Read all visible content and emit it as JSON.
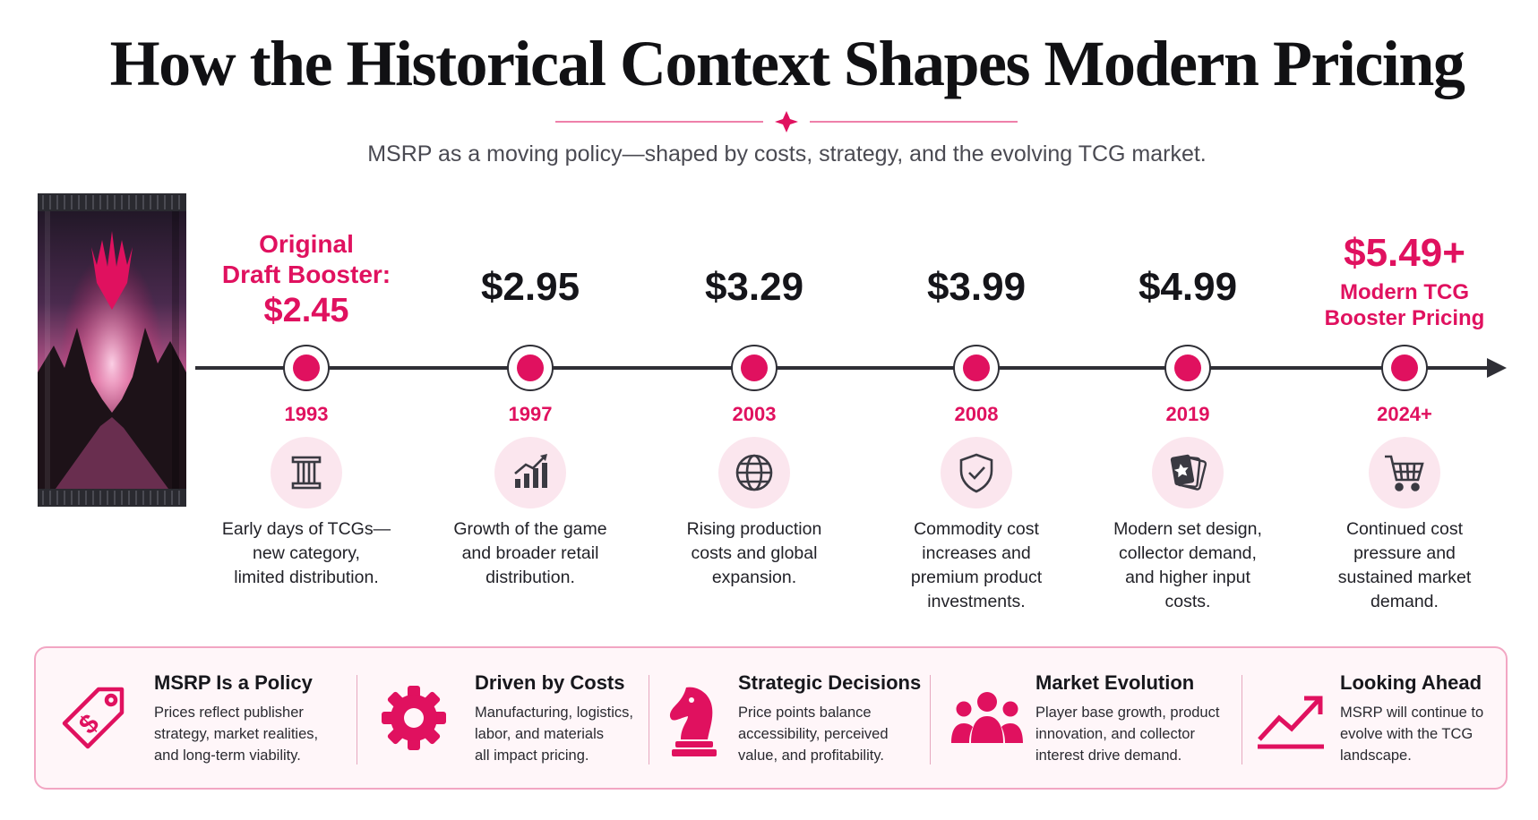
{
  "header": {
    "title": "How the Historical Context Shapes Modern Pricing",
    "subtitle": "MSRP as a moving policy—shaped by costs, strategy, and the evolving TCG market."
  },
  "colors": {
    "accent": "#e0115f",
    "text": "#15151a",
    "panel_bg": "#fff6f9",
    "icon_bg": "#fbe6ee"
  },
  "timeline": [
    {
      "year": "1993",
      "label_line1": "Original",
      "label_line2": "Draft Booster:",
      "price": "$2.45",
      "icon": "pillar-icon",
      "desc": [
        "Early days of TCGs—",
        "new category,",
        "limited distribution."
      ]
    },
    {
      "year": "1997",
      "price": "$2.95",
      "icon": "growth-chart-icon",
      "desc": [
        "Growth of the game",
        "and broader retail",
        "distribution."
      ]
    },
    {
      "year": "2003",
      "price": "$3.29",
      "icon": "globe-icon",
      "desc": [
        "Rising production",
        "costs and global",
        "expansion."
      ]
    },
    {
      "year": "2008",
      "price": "$3.99",
      "icon": "shield-check-icon",
      "desc": [
        "Commodity cost",
        "increases and",
        "premium product",
        "investments."
      ]
    },
    {
      "year": "2019",
      "price": "$4.99",
      "icon": "card-stack-icon",
      "desc": [
        "Modern set design,",
        "collector demand,",
        "and higher input",
        "costs."
      ]
    },
    {
      "year": "2024+",
      "price": "$5.49+",
      "label_line1": "Modern TCG",
      "label_line2": "Booster Pricing",
      "icon": "shopping-cart-icon",
      "desc": [
        "Continued cost",
        "pressure and",
        "sustained market",
        "demand."
      ]
    }
  ],
  "panel": [
    {
      "title": "MSRP Is a Policy",
      "icon": "price-tag-icon",
      "text": [
        "Prices reflect publisher",
        "strategy, market realities,",
        "and long-term viability."
      ]
    },
    {
      "title": "Driven by Costs",
      "icon": "gear-icon",
      "text": [
        "Manufacturing, logistics,",
        "labor, and materials",
        "all impact pricing."
      ]
    },
    {
      "title": "Strategic Decisions",
      "icon": "chess-knight-icon",
      "text": [
        "Price points balance",
        "accessibility, perceived",
        "value, and profitability."
      ]
    },
    {
      "title": "Market Evolution",
      "icon": "people-group-icon",
      "text": [
        "Player base growth, product",
        "innovation, and collector",
        "interest drive demand."
      ]
    },
    {
      "title": "Looking Ahead",
      "icon": "trend-up-icon",
      "text": [
        "MSRP will continue to",
        "evolve with the TCG",
        "landscape."
      ]
    }
  ]
}
